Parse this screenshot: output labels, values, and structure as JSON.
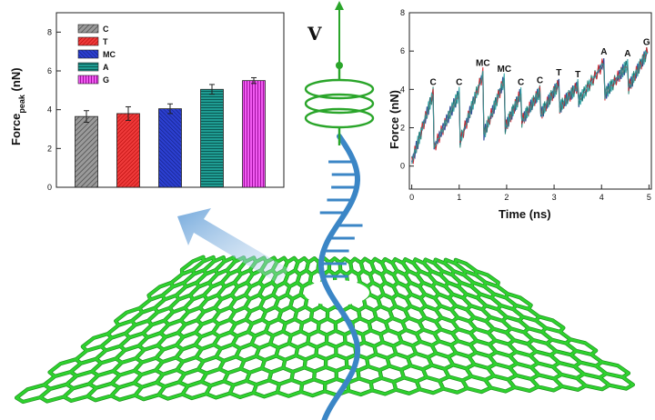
{
  "annotation": {
    "velocity_label": "V"
  },
  "colors": {
    "graphene": "#2fd22f",
    "graphene_dark": "#1a8f1a",
    "dna": "#3b86c6",
    "spring": "#2aa52a",
    "arrow": "#9fc4e6"
  },
  "chart_data": [
    {
      "type": "bar",
      "categories": [
        "C",
        "T",
        "MC",
        "A",
        "G"
      ],
      "values": [
        3.65,
        3.8,
        4.05,
        5.05,
        5.5
      ],
      "errors": [
        0.3,
        0.35,
        0.25,
        0.25,
        0.15
      ],
      "colors": [
        "#7a7a7a",
        "#e02020",
        "#1f2fb0",
        "#17877f",
        "#e33be3"
      ],
      "legend": [
        "C",
        "T",
        "MC",
        "A",
        "G"
      ],
      "legend_position": "top-left",
      "ylabel_main": "Force",
      "ylabel_sub": "peak",
      "ylabel_unit": "(nN)",
      "ylim": [
        0,
        9
      ],
      "yticks": [
        "0",
        "2",
        "4",
        "6",
        "8"
      ],
      "hatched": true
    },
    {
      "type": "line",
      "xlabel": "Time (ns)",
      "ylabel": "Force (nN)",
      "xlim": [
        -0.05,
        5.05
      ],
      "ylim": [
        -1.2,
        8
      ],
      "xticks": [
        "0",
        "1",
        "2",
        "3",
        "4",
        "5"
      ],
      "yticks": [
        "0",
        "2",
        "4",
        "6",
        "8"
      ],
      "series_colors": [
        "#0b2a8a",
        "#1a7a6a",
        "#d61f2a",
        "#25a0a0"
      ],
      "peaks": [
        {
          "t": 0.45,
          "f": 3.8,
          "label": "C"
        },
        {
          "t": 1.0,
          "f": 3.8,
          "label": "C"
        },
        {
          "t": 1.5,
          "f": 4.8,
          "label": "MC"
        },
        {
          "t": 1.95,
          "f": 4.5,
          "label": "MC"
        },
        {
          "t": 2.3,
          "f": 3.8,
          "label": "C"
        },
        {
          "t": 2.7,
          "f": 3.9,
          "label": "C"
        },
        {
          "t": 3.1,
          "f": 4.3,
          "label": "T"
        },
        {
          "t": 3.5,
          "f": 4.2,
          "label": "T"
        },
        {
          "t": 4.05,
          "f": 5.4,
          "label": "A"
        },
        {
          "t": 4.55,
          "f": 5.3,
          "label": "A"
        },
        {
          "t": 4.95,
          "f": 5.9,
          "label": "G"
        }
      ]
    }
  ]
}
